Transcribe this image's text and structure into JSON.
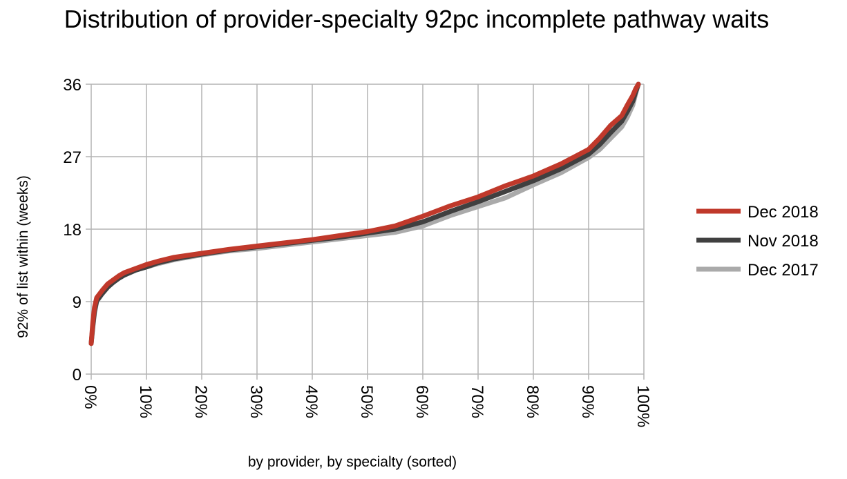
{
  "chart_data": {
    "type": "line",
    "title": "Distribution of provider-specialty 92pc incomplete pathway waits",
    "xlabel": "by provider, by specialty (sorted)",
    "ylabel": "92% of list within (weeks)",
    "xlim": [
      0,
      100
    ],
    "ylim": [
      0,
      36
    ],
    "x_ticks": [
      "0%",
      "10%",
      "20%",
      "30%",
      "40%",
      "50%",
      "60%",
      "70%",
      "80%",
      "90%",
      "100%"
    ],
    "y_ticks": [
      "0",
      "9",
      "18",
      "27",
      "36"
    ],
    "grid": true,
    "legend_position": "right",
    "x": [
      0,
      0.3,
      0.6,
      1,
      2,
      3,
      4,
      5,
      6,
      8,
      10,
      12,
      15,
      20,
      25,
      30,
      35,
      40,
      45,
      50,
      55,
      60,
      65,
      70,
      75,
      80,
      85,
      90,
      92,
      94,
      96,
      97,
      98,
      98.5,
      99
    ],
    "series": [
      {
        "name": "Dec 2018",
        "color": "#c0392b",
        "values": [
          3.8,
          6.5,
          8.3,
          9.5,
          10.4,
          11.2,
          11.7,
          12.2,
          12.6,
          13.1,
          13.6,
          14.0,
          14.5,
          15.0,
          15.5,
          15.9,
          16.3,
          16.7,
          17.2,
          17.7,
          18.4,
          19.6,
          20.9,
          22.0,
          23.4,
          24.6,
          26.1,
          27.9,
          29.3,
          30.9,
          32.1,
          33.4,
          34.6,
          35.4,
          36.0
        ]
      },
      {
        "name": "Nov 2018",
        "color": "#404040",
        "values": [
          3.8,
          6.0,
          7.8,
          9.1,
          10.0,
          10.8,
          11.4,
          11.9,
          12.3,
          12.9,
          13.3,
          13.8,
          14.3,
          14.9,
          15.4,
          15.8,
          16.2,
          16.6,
          17.0,
          17.5,
          18.0,
          18.9,
          20.2,
          21.4,
          22.7,
          24.0,
          25.5,
          27.3,
          28.5,
          30.0,
          31.4,
          32.6,
          33.9,
          35.0,
          36.0
        ]
      },
      {
        "name": "Dec 2017",
        "color": "#aaaaaa",
        "values": [
          3.8,
          5.8,
          7.6,
          9.0,
          10.0,
          10.8,
          11.4,
          11.9,
          12.3,
          12.9,
          13.3,
          13.7,
          14.2,
          14.8,
          15.3,
          15.6,
          16.0,
          16.4,
          16.8,
          17.2,
          17.6,
          18.4,
          19.7,
          20.8,
          21.9,
          23.5,
          25.0,
          26.9,
          27.9,
          29.3,
          30.7,
          31.9,
          33.4,
          34.8,
          36.0
        ]
      }
    ]
  }
}
